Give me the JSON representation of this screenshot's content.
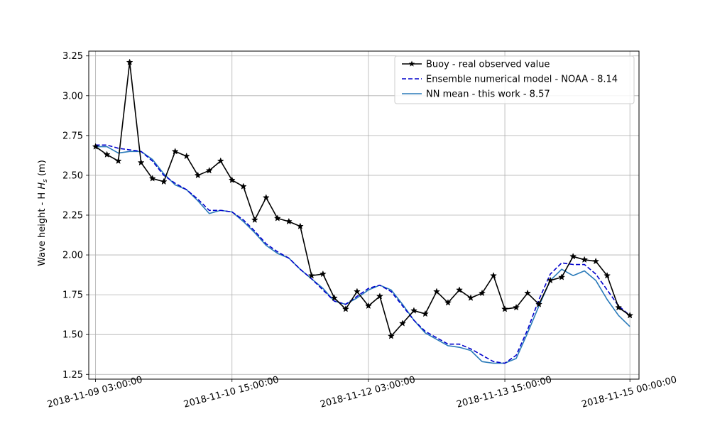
{
  "chart_data": {
    "type": "line",
    "xlabel": "",
    "ylabel": "Wave height - H",
    "ylabel_subscript": "s",
    "ylabel_unit": "(m)",
    "ylim": [
      1.22,
      3.28
    ],
    "xlim": [
      -0.6,
      47.8
    ],
    "grid": true,
    "legend_position": "top-right",
    "x_ticks": [
      {
        "x": 0,
        "label": "2018-11-09 03:00:00"
      },
      {
        "x": 12,
        "label": "2018-11-10 15:00:00"
      },
      {
        "x": 24,
        "label": "2018-11-12 03:00:00"
      },
      {
        "x": 36,
        "label": "2018-11-13 15:00:00"
      },
      {
        "x": 47,
        "label": "2018-11-15 00:00:00"
      }
    ],
    "y_ticks": [
      1.25,
      1.5,
      1.75,
      2.0,
      2.25,
      2.5,
      2.75,
      3.0,
      3.25
    ],
    "series": [
      {
        "name": "Buoy - real observed value",
        "color": "#000000",
        "style": "solid-star",
        "values": [
          2.68,
          2.63,
          2.59,
          3.21,
          2.58,
          2.48,
          2.46,
          2.65,
          2.62,
          2.5,
          2.53,
          2.59,
          2.47,
          2.43,
          2.22,
          2.36,
          2.23,
          2.21,
          2.18,
          1.87,
          1.88,
          1.73,
          1.66,
          1.77,
          1.68,
          1.74,
          1.49,
          1.57,
          1.65,
          1.63,
          1.77,
          1.7,
          1.78,
          1.73,
          1.76,
          1.87,
          1.66,
          1.67,
          1.76,
          1.69,
          1.84,
          1.86,
          1.99,
          1.97,
          1.96,
          1.87,
          1.67,
          1.62
        ]
      },
      {
        "name": "Ensemble numerical model - NOAA - 8.14",
        "color": "#0000cc",
        "style": "dashed",
        "values": [
          2.69,
          2.69,
          2.67,
          2.66,
          2.65,
          2.59,
          2.5,
          2.45,
          2.41,
          2.35,
          2.28,
          2.28,
          2.27,
          2.22,
          2.15,
          2.07,
          2.02,
          1.98,
          1.91,
          1.85,
          1.78,
          1.71,
          1.69,
          1.74,
          1.79,
          1.81,
          1.77,
          1.68,
          1.59,
          1.52,
          1.48,
          1.44,
          1.44,
          1.41,
          1.37,
          1.33,
          1.32,
          1.37,
          1.53,
          1.72,
          1.88,
          1.95,
          1.94,
          1.94,
          1.88,
          1.78,
          1.68,
          1.62
        ]
      },
      {
        "name": "NN mean - this work - 8.57",
        "color": "#2a7ab9",
        "style": "solid",
        "values": [
          2.68,
          2.68,
          2.64,
          2.65,
          2.65,
          2.6,
          2.51,
          2.44,
          2.41,
          2.34,
          2.26,
          2.28,
          2.27,
          2.21,
          2.14,
          2.06,
          2.01,
          1.98,
          1.91,
          1.85,
          1.79,
          1.71,
          1.69,
          1.73,
          1.78,
          1.81,
          1.78,
          1.69,
          1.59,
          1.51,
          1.47,
          1.43,
          1.42,
          1.4,
          1.33,
          1.32,
          1.32,
          1.35,
          1.51,
          1.68,
          1.84,
          1.91,
          1.87,
          1.9,
          1.84,
          1.72,
          1.62,
          1.55
        ]
      }
    ]
  }
}
